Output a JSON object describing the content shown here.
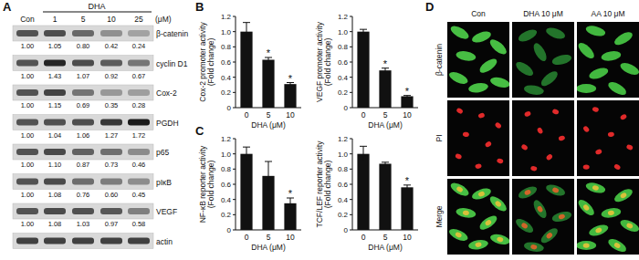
{
  "panel_labels": [
    "A",
    "B",
    "C",
    "D"
  ],
  "blot": {
    "treatment": "DHA",
    "unit": "(μM)",
    "lanes": [
      "Con",
      "1",
      "5",
      "10",
      "25"
    ],
    "rows": [
      {
        "label": "β-catenin",
        "values": [
          1,
          1.05,
          0.8,
          0.42,
          0.24
        ],
        "value_labels": [
          "1.00",
          "1.05",
          "0.80",
          "0.42",
          "0.24"
        ]
      },
      {
        "label": "cyclin D1",
        "values": [
          1,
          1.43,
          1.07,
          0.92,
          0.67
        ],
        "value_labels": [
          "1.00",
          "1.43",
          "1.07",
          "0.92",
          "0.67"
        ]
      },
      {
        "label": "Cox-2",
        "values": [
          1,
          1.15,
          0.69,
          0.35,
          0.28
        ],
        "value_labels": [
          "1.00",
          "1.15",
          "0.69",
          "0.35",
          "0.28"
        ]
      },
      {
        "label": "PGDH",
        "values": [
          1,
          1.04,
          1.06,
          1.27,
          1.72
        ],
        "value_labels": [
          "1.00",
          "1.04",
          "1.06",
          "1.27",
          "1.72"
        ]
      },
      {
        "label": "p65",
        "values": [
          1,
          1.1,
          0.87,
          0.73,
          0.46
        ],
        "value_labels": [
          "1.00",
          "1.10",
          "0.87",
          "0.73",
          "0.46"
        ]
      },
      {
        "label": "pIκB",
        "values": [
          1,
          1.08,
          0.76,
          0.6,
          0.45
        ],
        "value_labels": [
          "1.00",
          "1.08",
          "0.76",
          "0.60",
          "0.45"
        ]
      },
      {
        "label": "VEGF",
        "values": [
          1,
          1.08,
          1.03,
          0.97,
          0.58
        ],
        "value_labels": [
          "1.00",
          "1.08",
          "1.03",
          "0.97",
          "0.58"
        ]
      },
      {
        "label": "actin"
      }
    ]
  },
  "chart_data": [
    {
      "type": "bar",
      "y_label": [
        "Cox-2 promoter activity",
        "(Fold change)"
      ],
      "x_label": "DHA (μM)",
      "categories": [
        "0",
        "5",
        "10"
      ],
      "values": [
        1,
        0.63,
        0.31
      ],
      "errors": [
        0.12,
        0.03,
        0.02
      ],
      "color": "#111111",
      "ylim": [
        0,
        1.2
      ],
      "yticks": [
        0,
        0.2,
        0.4,
        0.6,
        0.8,
        {
          "value": 1,
          "label": "1.0"
        },
        1.2
      ],
      "annotations": [
        {
          "category": "5",
          "text": "*"
        },
        {
          "category": "10",
          "text": "*"
        }
      ]
    },
    {
      "type": "bar",
      "y_label": [
        "VEGF promoter activity",
        "(Fold change)"
      ],
      "x_label": "DHA (μM)",
      "categories": [
        "0",
        "5",
        "10"
      ],
      "values": [
        1,
        0.49,
        0.15
      ],
      "errors": [
        0.03,
        0.03,
        0.01
      ],
      "color": "#111111",
      "ylim": [
        0,
        1.2
      ],
      "yticks": [
        0,
        0.2,
        0.4,
        0.6,
        0.8,
        {
          "value": 1,
          "label": "1.0"
        },
        1.2
      ],
      "annotations": [
        {
          "category": "5",
          "text": "*"
        },
        {
          "category": "10",
          "text": "*"
        }
      ]
    },
    {
      "type": "bar",
      "y_label": [
        "NF-κB reporter activity",
        "(Fold change)"
      ],
      "x_label": "DHA (μM)",
      "categories": [
        "0",
        "5",
        "10"
      ],
      "values": [
        1,
        0.71,
        0.35
      ],
      "errors": [
        0.09,
        0.19,
        0.07
      ],
      "color": "#111111",
      "ylim": [
        0,
        1.2
      ],
      "yticks": [
        0,
        0.2,
        0.4,
        0.6,
        0.8,
        {
          "value": 1,
          "label": "1.0"
        },
        1.2
      ],
      "annotations": [
        {
          "category": "10",
          "text": "*"
        }
      ]
    },
    {
      "type": "bar",
      "y_label": [
        "TCF/LEF reporter activity",
        "(Fold change)"
      ],
      "x_label": "DHA (μM)",
      "categories": [
        "0",
        "5",
        "10"
      ],
      "values": [
        1,
        0.87,
        0.56
      ],
      "errors": [
        0.1,
        0.02,
        0.03
      ],
      "color": "#111111",
      "ylim": [
        0,
        1.2
      ],
      "yticks": [
        0,
        0.2,
        0.4,
        0.6,
        0.8,
        {
          "value": 1,
          "label": "1.0"
        },
        1.2
      ],
      "annotations": [
        {
          "category": "10",
          "text": "*"
        }
      ]
    }
  ],
  "images": {
    "columns": [
      "Con",
      "DHA 10 μM",
      "AA 10 μM"
    ],
    "rows": [
      "β-catenin",
      "PI",
      "Merge"
    ]
  }
}
